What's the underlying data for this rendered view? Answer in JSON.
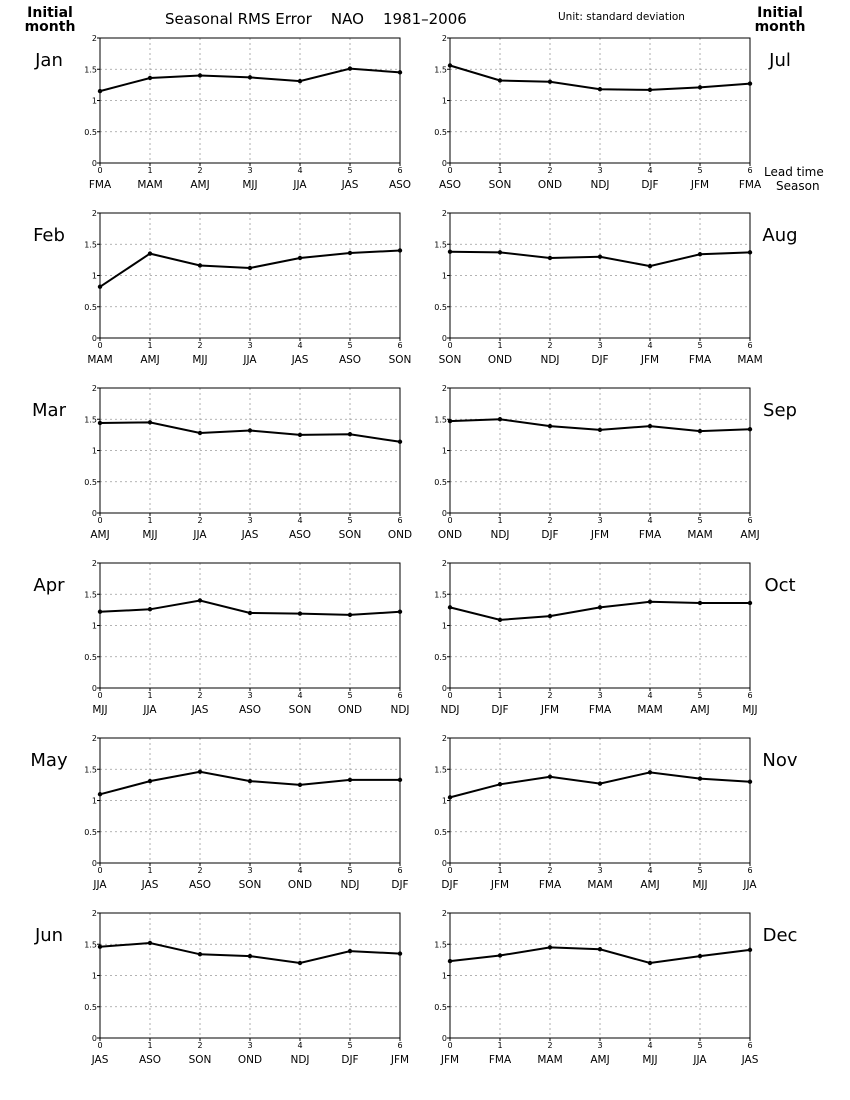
{
  "header": {
    "title": "Seasonal RMS Error    NAO    1981–2006",
    "unit": "Unit: standard deviation",
    "left_label_line1": "Initial",
    "left_label_line2": "month",
    "right_label_line1": "Initial",
    "right_label_line2": "month",
    "lead_time_label": "Lead time",
    "season_label": "Season"
  },
  "chart_data": [
    {
      "type": "line",
      "initial_month": "Jan",
      "x": [
        0,
        1,
        2,
        3,
        4,
        5,
        6
      ],
      "x_seasons": [
        "FMA",
        "MAM",
        "AMJ",
        "MJJ",
        "JJA",
        "JAS",
        "ASO"
      ],
      "values": [
        1.15,
        1.36,
        1.4,
        1.37,
        1.31,
        1.51,
        1.45
      ],
      "ylim": [
        0,
        2
      ],
      "yticks": [
        0,
        0.5,
        1,
        1.5,
        2
      ],
      "grid": true
    },
    {
      "type": "line",
      "initial_month": "Jul",
      "x": [
        0,
        1,
        2,
        3,
        4,
        5,
        6
      ],
      "x_seasons": [
        "ASO",
        "SON",
        "OND",
        "NDJ",
        "DJF",
        "JFM",
        "FMA"
      ],
      "values": [
        1.56,
        1.32,
        1.3,
        1.18,
        1.17,
        1.21,
        1.27
      ],
      "ylim": [
        0,
        2
      ],
      "yticks": [
        0,
        0.5,
        1,
        1.5,
        2
      ],
      "grid": true
    },
    {
      "type": "line",
      "initial_month": "Feb",
      "x": [
        0,
        1,
        2,
        3,
        4,
        5,
        6
      ],
      "x_seasons": [
        "MAM",
        "AMJ",
        "MJJ",
        "JJA",
        "JAS",
        "ASO",
        "SON"
      ],
      "values": [
        0.82,
        1.35,
        1.16,
        1.12,
        1.28,
        1.36,
        1.4
      ],
      "ylim": [
        0,
        2
      ],
      "yticks": [
        0,
        0.5,
        1,
        1.5,
        2
      ],
      "grid": true
    },
    {
      "type": "line",
      "initial_month": "Aug",
      "x": [
        0,
        1,
        2,
        3,
        4,
        5,
        6
      ],
      "x_seasons": [
        "SON",
        "OND",
        "NDJ",
        "DJF",
        "JFM",
        "FMA",
        "MAM"
      ],
      "values": [
        1.38,
        1.37,
        1.28,
        1.3,
        1.15,
        1.34,
        1.37
      ],
      "ylim": [
        0,
        2
      ],
      "yticks": [
        0,
        0.5,
        1,
        1.5,
        2
      ],
      "grid": true
    },
    {
      "type": "line",
      "initial_month": "Mar",
      "x": [
        0,
        1,
        2,
        3,
        4,
        5,
        6
      ],
      "x_seasons": [
        "AMJ",
        "MJJ",
        "JJA",
        "JAS",
        "ASO",
        "SON",
        "OND"
      ],
      "values": [
        1.44,
        1.45,
        1.28,
        1.32,
        1.25,
        1.26,
        1.14
      ],
      "ylim": [
        0,
        2
      ],
      "yticks": [
        0,
        0.5,
        1,
        1.5,
        2
      ],
      "grid": true
    },
    {
      "type": "line",
      "initial_month": "Sep",
      "x": [
        0,
        1,
        2,
        3,
        4,
        5,
        6
      ],
      "x_seasons": [
        "OND",
        "NDJ",
        "DJF",
        "JFM",
        "FMA",
        "MAM",
        "AMJ"
      ],
      "values": [
        1.47,
        1.5,
        1.39,
        1.33,
        1.39,
        1.31,
        1.34
      ],
      "ylim": [
        0,
        2
      ],
      "yticks": [
        0,
        0.5,
        1,
        1.5,
        2
      ],
      "grid": true
    },
    {
      "type": "line",
      "initial_month": "Apr",
      "x": [
        0,
        1,
        2,
        3,
        4,
        5,
        6
      ],
      "x_seasons": [
        "MJJ",
        "JJA",
        "JAS",
        "ASO",
        "SON",
        "OND",
        "NDJ"
      ],
      "values": [
        1.22,
        1.26,
        1.4,
        1.2,
        1.19,
        1.17,
        1.22
      ],
      "ylim": [
        0,
        2
      ],
      "yticks": [
        0,
        0.5,
        1,
        1.5,
        2
      ],
      "grid": true
    },
    {
      "type": "line",
      "initial_month": "Oct",
      "x": [
        0,
        1,
        2,
        3,
        4,
        5,
        6
      ],
      "x_seasons": [
        "NDJ",
        "DJF",
        "JFM",
        "FMA",
        "MAM",
        "AMJ",
        "MJJ"
      ],
      "values": [
        1.29,
        1.09,
        1.15,
        1.29,
        1.38,
        1.36,
        1.36
      ],
      "ylim": [
        0,
        2
      ],
      "yticks": [
        0,
        0.5,
        1,
        1.5,
        2
      ],
      "grid": true
    },
    {
      "type": "line",
      "initial_month": "May",
      "x": [
        0,
        1,
        2,
        3,
        4,
        5,
        6
      ],
      "x_seasons": [
        "JJA",
        "JAS",
        "ASO",
        "SON",
        "OND",
        "NDJ",
        "DJF"
      ],
      "values": [
        1.1,
        1.31,
        1.46,
        1.31,
        1.25,
        1.33,
        1.33
      ],
      "ylim": [
        0,
        2
      ],
      "yticks": [
        0,
        0.5,
        1,
        1.5,
        2
      ],
      "grid": true
    },
    {
      "type": "line",
      "initial_month": "Nov",
      "x": [
        0,
        1,
        2,
        3,
        4,
        5,
        6
      ],
      "x_seasons": [
        "DJF",
        "JFM",
        "FMA",
        "MAM",
        "AMJ",
        "MJJ",
        "JJA"
      ],
      "values": [
        1.05,
        1.26,
        1.38,
        1.27,
        1.45,
        1.35,
        1.3
      ],
      "ylim": [
        0,
        2
      ],
      "yticks": [
        0,
        0.5,
        1,
        1.5,
        2
      ],
      "grid": true
    },
    {
      "type": "line",
      "initial_month": "Jun",
      "x": [
        0,
        1,
        2,
        3,
        4,
        5,
        6
      ],
      "x_seasons": [
        "JAS",
        "ASO",
        "SON",
        "OND",
        "NDJ",
        "DJF",
        "JFM"
      ],
      "values": [
        1.46,
        1.52,
        1.34,
        1.31,
        1.2,
        1.39,
        1.35
      ],
      "ylim": [
        0,
        2
      ],
      "yticks": [
        0,
        0.5,
        1,
        1.5,
        2
      ],
      "grid": true
    },
    {
      "type": "line",
      "initial_month": "Dec",
      "x": [
        0,
        1,
        2,
        3,
        4,
        5,
        6
      ],
      "x_seasons": [
        "JFM",
        "FMA",
        "MAM",
        "AMJ",
        "MJJ",
        "JJA",
        "JAS"
      ],
      "values": [
        1.23,
        1.32,
        1.45,
        1.42,
        1.2,
        1.31,
        1.41
      ],
      "ylim": [
        0,
        2
      ],
      "yticks": [
        0,
        0.5,
        1,
        1.5,
        2
      ],
      "grid": true
    }
  ]
}
